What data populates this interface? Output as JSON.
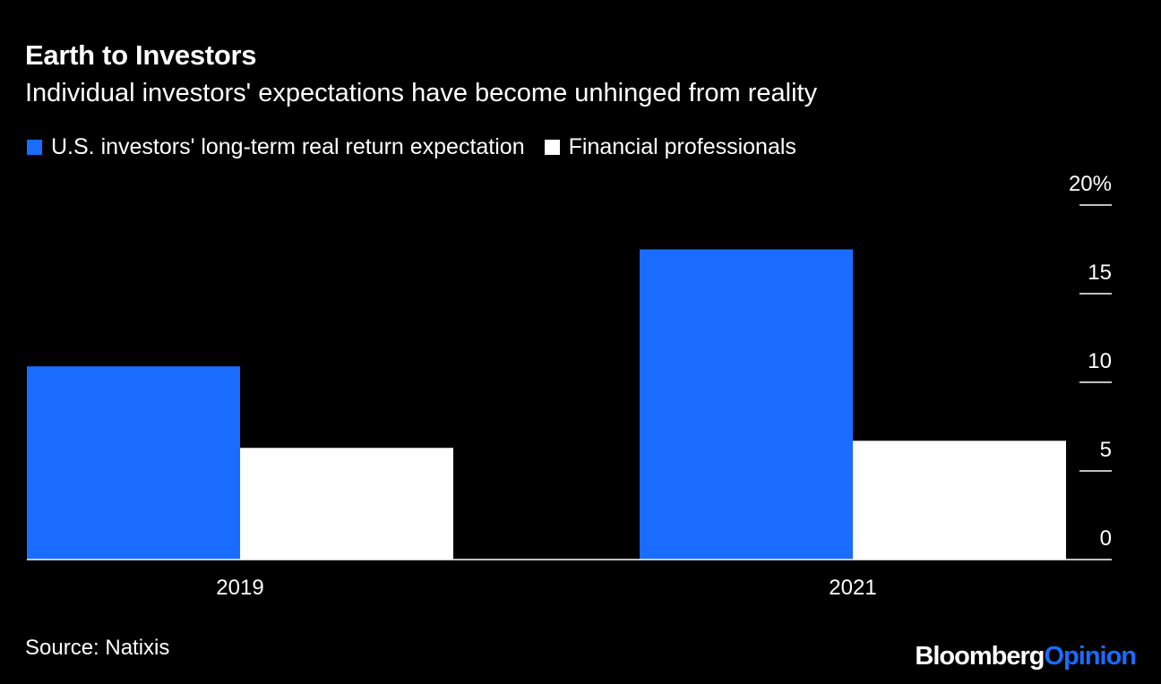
{
  "header": {
    "title": "Earth to Investors",
    "subtitle": "Individual investors' expectations have become unhinged from reality"
  },
  "footer": {
    "source": "Source: Natixis",
    "brand_part1": "Bloomberg",
    "brand_part2": "Opinion"
  },
  "colors": {
    "background": "#000000",
    "series1": "#1a6cff",
    "series2": "#ffffff",
    "text": "#ffffff"
  },
  "chart_data": {
    "type": "bar",
    "title": "Earth to Investors",
    "subtitle": "Individual investors' expectations have become unhinged from reality",
    "categories": [
      "2019",
      "2021"
    ],
    "series": [
      {
        "name": "U.S. investors' long-term real return expectation",
        "values": [
          10.9,
          17.5
        ],
        "color": "#1a6cff"
      },
      {
        "name": "Financial professionals",
        "values": [
          6.3,
          6.7
        ],
        "color": "#ffffff"
      }
    ],
    "ylim": [
      0,
      20
    ],
    "yticks": [
      0,
      5,
      10,
      15,
      20
    ],
    "ytick_labels": [
      "0",
      "5",
      "10",
      "15",
      "20%"
    ],
    "y_axis_position": "right",
    "grid": false,
    "legend_position": "top-left"
  }
}
